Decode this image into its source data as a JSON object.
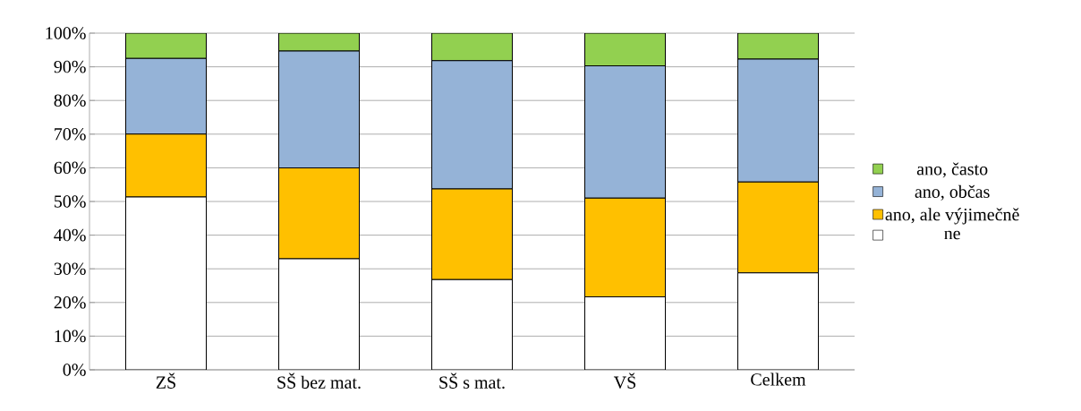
{
  "chart_data": {
    "type": "bar",
    "stacked": true,
    "categories": [
      "ZŠ",
      "SŠ bez mat.",
      "SŠ s mat.",
      "VŠ",
      "Celkem"
    ],
    "series": [
      {
        "name": "ne",
        "color": "#ffffff",
        "values": [
          51.3,
          33,
          26.8,
          21.7,
          28.8
        ]
      },
      {
        "name": "ano, ale výjimečně",
        "color": "#ffc000",
        "values": [
          18.7,
          27,
          26.9,
          29.3,
          27
        ]
      },
      {
        "name": "ano, občas",
        "color": "#95b3d7",
        "values": [
          22.5,
          34.7,
          38.1,
          39.3,
          36.5
        ]
      },
      {
        "name": "ano, často",
        "color": "#92d050",
        "values": [
          7.5,
          5.3,
          8.2,
          9.7,
          7.7
        ]
      }
    ],
    "ylim": [
      0,
      100
    ],
    "yticks": [
      {
        "value": 0,
        "label": "0%"
      },
      {
        "value": 10,
        "label": "10%"
      },
      {
        "value": 20,
        "label": "20%"
      },
      {
        "value": 30,
        "label": "30%"
      },
      {
        "value": 40,
        "label": "40%"
      },
      {
        "value": 50,
        "label": "50%"
      },
      {
        "value": 60,
        "label": "60%"
      },
      {
        "value": 70,
        "label": "70%"
      },
      {
        "value": 80,
        "label": "80%"
      },
      {
        "value": 90,
        "label": "90%"
      },
      {
        "value": 100,
        "label": "100%"
      }
    ],
    "grid": "y",
    "legend": "right"
  }
}
